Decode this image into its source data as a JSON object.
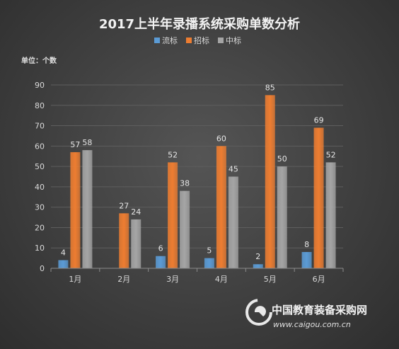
{
  "chart_data": {
    "type": "bar",
    "title": "2017上半年录播系统采购单数分析",
    "unit_label": "单位：个数",
    "categories": [
      "1月",
      "2月",
      "3月",
      "4月",
      "5月",
      "6月"
    ],
    "series": [
      {
        "name": "流标",
        "color": "#5b9bd5",
        "values": [
          4,
          null,
          6,
          5,
          2,
          8
        ],
        "labels": [
          "4",
          "",
          "6",
          "5",
          "2",
          "8"
        ]
      },
      {
        "name": "招标",
        "color": "#ed7d31",
        "values": [
          57,
          27,
          52,
          60,
          85,
          69
        ],
        "labels": [
          "57",
          "27",
          "52",
          "60",
          "85",
          "69"
        ]
      },
      {
        "name": "中标",
        "color": "#a5a5a5",
        "values": [
          58,
          24,
          38,
          45,
          50,
          52
        ],
        "labels": [
          "58",
          "24",
          "38",
          "45",
          "50",
          "52"
        ]
      }
    ],
    "ylim": [
      0,
      90
    ],
    "yticks": [
      0,
      10,
      20,
      30,
      40,
      50,
      60,
      70,
      80,
      90
    ],
    "grid": true,
    "legend_position": "top-center"
  },
  "watermark": {
    "name": "中国教育装备采购网",
    "url": "www.caigou.com.cn"
  }
}
